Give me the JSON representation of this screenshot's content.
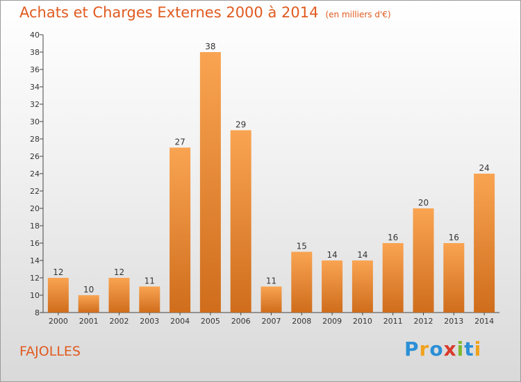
{
  "chart_data": {
    "type": "bar",
    "title": "Achats et Charges Externes 2000 à 2014",
    "subtitle": "(en milliers d'€)",
    "categories": [
      "2000",
      "2001",
      "2002",
      "2003",
      "2004",
      "2005",
      "2006",
      "2007",
      "2008",
      "2009",
      "2010",
      "2011",
      "2012",
      "2013",
      "2014"
    ],
    "values": [
      12,
      10,
      12,
      11,
      27,
      38,
      29,
      11,
      15,
      14,
      14,
      16,
      20,
      16,
      24
    ],
    "ylim": [
      8,
      40
    ],
    "yticks": [
      8,
      10,
      12,
      14,
      16,
      18,
      20,
      22,
      24,
      26,
      28,
      30,
      32,
      34,
      36,
      38,
      40
    ],
    "grid": false,
    "colors": {
      "bar_light": "#f9a452",
      "bar_dark": "#cf6d1c",
      "text": "#333333",
      "accent": "#e05a1f"
    }
  },
  "commune": "FAJOLLES",
  "logo": {
    "letters": [
      "P",
      "r",
      "o",
      "x",
      "i",
      "t",
      "i"
    ],
    "colors": [
      "#2a8fd6",
      "#f0a21b",
      "#2a8fd6",
      "#d93a2b",
      "#7cba2f",
      "#2a8fd6",
      "#f0a21b"
    ]
  }
}
